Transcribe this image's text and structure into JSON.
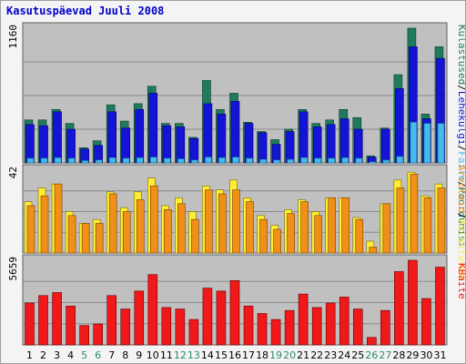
{
  "title": "Kasutuspäevad Juuli 2008",
  "colors": {
    "background": "#f4f4f4",
    "plot_bg": "#c0c0c0",
    "grid": "#8c8c8c",
    "title": "#0000c8",
    "visits": "#1f7a5e",
    "pages": "#1414d6",
    "files": "#44bbee",
    "hits": "#f09018",
    "hosts": "#ffee33",
    "kbytes": "#f01818",
    "weekend_label": "#2a8a6a",
    "weekday_label": "#000000"
  },
  "chart_data": [
    {
      "type": "bar",
      "panel": "top",
      "ymax_label": "1160",
      "ylim": [
        0,
        1160
      ],
      "legend": [
        "Külastused",
        "/",
        "Lehekülgi",
        "/",
        "Faile",
        "/",
        "Pöördumisi"
      ],
      "categories": [
        "1",
        "2",
        "3",
        "4",
        "5",
        "6",
        "7",
        "8",
        "9",
        "10",
        "11",
        "12",
        "13",
        "14",
        "15",
        "16",
        "17",
        "18",
        "19",
        "20",
        "21",
        "22",
        "23",
        "24",
        "25",
        "26",
        "27",
        "28",
        "29",
        "30",
        "31"
      ],
      "series": [
        {
          "name": "Pöördumisi",
          "values": [
            370,
            370,
            460,
            340,
            130,
            190,
            500,
            360,
            510,
            660,
            340,
            340,
            220,
            710,
            460,
            600,
            350,
            270,
            200,
            290,
            460,
            340,
            370,
            460,
            390,
            60,
            300,
            760,
            1160,
            420,
            1000
          ]
        },
        {
          "name": "Faile",
          "values": [
            330,
            320,
            440,
            290,
            120,
            150,
            440,
            300,
            460,
            600,
            320,
            310,
            210,
            510,
            420,
            530,
            340,
            260,
            160,
            270,
            440,
            310,
            330,
            380,
            290,
            50,
            290,
            640,
            1000,
            380,
            900
          ]
        },
        {
          "name": "Lehekülgi",
          "values": [
            40,
            40,
            45,
            40,
            20,
            25,
            45,
            40,
            45,
            50,
            40,
            35,
            25,
            50,
            45,
            50,
            40,
            30,
            25,
            30,
            45,
            40,
            40,
            45,
            40,
            10,
            25,
            55,
            350,
            340,
            340
          ]
        }
      ]
    },
    {
      "type": "bar",
      "panel": "middle",
      "ymax_label": "42",
      "ylim": [
        0,
        42
      ],
      "legend": [
        "Arvuteid",
        "/",
        "Külastused"
      ],
      "categories": [
        "1",
        "2",
        "3",
        "4",
        "5",
        "6",
        "7",
        "8",
        "9",
        "10",
        "11",
        "12",
        "13",
        "14",
        "15",
        "16",
        "17",
        "18",
        "19",
        "20",
        "21",
        "22",
        "23",
        "24",
        "25",
        "26",
        "27",
        "28",
        "29",
        "30",
        "31"
      ],
      "series": [
        {
          "name": "Külastused",
          "values": [
            26,
            33,
            35,
            21,
            15,
            17,
            31,
            23,
            31,
            38,
            24,
            28,
            21,
            34,
            32,
            37,
            28,
            19,
            14,
            22,
            27,
            21,
            28,
            28,
            18,
            6,
            25,
            37,
            41,
            29,
            35
          ]
        },
        {
          "name": "Arvuteid",
          "values": [
            24,
            29,
            35,
            19,
            15,
            15,
            30,
            21,
            27,
            34,
            22,
            25,
            17,
            32,
            30,
            32,
            26,
            17,
            12,
            20,
            26,
            19,
            28,
            28,
            17,
            3,
            25,
            33,
            40,
            28,
            33
          ]
        }
      ]
    },
    {
      "type": "bar",
      "panel": "bottom",
      "ymax_label": "5659",
      "ylim": [
        0,
        5659
      ],
      "legend": [
        "KBaite"
      ],
      "categories": [
        "1",
        "2",
        "3",
        "4",
        "5",
        "6",
        "7",
        "8",
        "9",
        "10",
        "11",
        "12",
        "13",
        "14",
        "15",
        "16",
        "17",
        "18",
        "19",
        "20",
        "21",
        "22",
        "23",
        "24",
        "25",
        "26",
        "27",
        "28",
        "29",
        "30",
        "31"
      ],
      "series": [
        {
          "name": "KBaite",
          "values": [
            2800,
            3300,
            3500,
            2600,
            1300,
            1400,
            3300,
            2400,
            3600,
            4700,
            2500,
            2400,
            1700,
            3800,
            3600,
            4300,
            2600,
            2100,
            1700,
            2300,
            3400,
            2500,
            2800,
            3200,
            2400,
            500,
            2300,
            4900,
            5659,
            3100,
            5200
          ]
        }
      ]
    }
  ],
  "weekend_days": [
    "5",
    "6",
    "12",
    "13",
    "19",
    "20",
    "26",
    "27"
  ]
}
